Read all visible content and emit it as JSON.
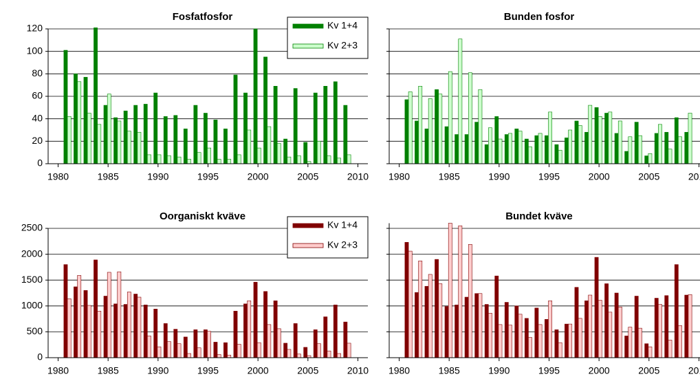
{
  "chart_data": [
    {
      "type": "bar",
      "title": "Fosfatfosfor",
      "x": [
        1981,
        1982,
        1983,
        1984,
        1985,
        1986,
        1987,
        1988,
        1989,
        1990,
        1991,
        1992,
        1993,
        1994,
        1995,
        1996,
        1997,
        1998,
        1999,
        2000,
        2001,
        2002,
        2003,
        2004,
        2005,
        2006,
        2007,
        2008,
        2009
      ],
      "series": [
        {
          "name": "Kv 1+4",
          "color": "#008000",
          "values": [
            101,
            80,
            77,
            121,
            52,
            41,
            47,
            52,
            53,
            63,
            42,
            43,
            31,
            52,
            45,
            39,
            31,
            79,
            63,
            120,
            95,
            69,
            22,
            67,
            19,
            63,
            69,
            73,
            52
          ]
        },
        {
          "name": "Kv 2+3",
          "color": "#ccffcc",
          "values": [
            42,
            73,
            45,
            35,
            62,
            38,
            29,
            28,
            8,
            8,
            7,
            6,
            4,
            10,
            14,
            4,
            4,
            8,
            30,
            14,
            33,
            18,
            6,
            7,
            2,
            20,
            7,
            5,
            8
          ]
        }
      ],
      "xlim": [
        1979,
        2011
      ],
      "xticks": [
        1980,
        1985,
        1990,
        1995,
        2000,
        2005,
        2010
      ],
      "ylim": [
        0,
        120
      ],
      "yticks": [
        0,
        20,
        40,
        60,
        80,
        100,
        120
      ],
      "show_ytick_labels": true,
      "grid": true,
      "legend": "upper right"
    },
    {
      "type": "bar",
      "title": "Bunden fosfor",
      "x": [
        1981,
        1982,
        1983,
        1984,
        1985,
        1986,
        1987,
        1988,
        1989,
        1990,
        1991,
        1992,
        1993,
        1994,
        1995,
        1996,
        1997,
        1998,
        1999,
        2000,
        2001,
        2002,
        2003,
        2004,
        2005,
        2006,
        2007,
        2008,
        2009
      ],
      "series": [
        {
          "name": "Kv 1+4",
          "color": "#008000",
          "values": [
            57,
            38,
            31,
            66,
            33,
            26,
            26,
            37,
            17,
            42,
            26,
            31,
            22,
            25,
            25,
            17,
            23,
            38,
            28,
            50,
            45,
            27,
            11,
            37,
            7,
            27,
            28,
            41,
            28
          ]
        },
        {
          "name": "Kv 2+3",
          "color": "#ccffcc",
          "values": [
            64,
            69,
            58,
            62,
            82,
            111,
            81,
            66,
            32,
            22,
            27,
            29,
            15,
            27,
            46,
            12,
            30,
            34,
            52,
            42,
            46,
            38,
            24,
            25,
            9,
            35,
            13,
            24,
            45
          ]
        }
      ],
      "xlim": [
        1979,
        2011
      ],
      "xticks": [
        1980,
        1985,
        1990,
        1995,
        2000,
        2005,
        2010
      ],
      "ylim": [
        0,
        120
      ],
      "yticks": [
        0,
        20,
        40,
        60,
        80,
        100,
        120
      ],
      "show_ytick_labels": false,
      "grid": true,
      "legend": false
    },
    {
      "type": "bar",
      "title": "Oorganiskt kväve",
      "x": [
        1981,
        1982,
        1983,
        1984,
        1985,
        1986,
        1987,
        1988,
        1989,
        1990,
        1991,
        1992,
        1993,
        1994,
        1995,
        1996,
        1997,
        1998,
        1999,
        2000,
        2001,
        2002,
        2003,
        2004,
        2005,
        2006,
        2007,
        2008,
        2009
      ],
      "series": [
        {
          "name": "Kv 1+4",
          "color": "#800000",
          "values": [
            1800,
            1370,
            1300,
            1890,
            1190,
            1040,
            1030,
            1230,
            1020,
            940,
            660,
            550,
            400,
            540,
            540,
            300,
            290,
            900,
            1040,
            1460,
            1280,
            1100,
            280,
            660,
            200,
            540,
            790,
            1020,
            690
          ]
        },
        {
          "name": "Kv 2+3",
          "color": "#ffcccc",
          "values": [
            1140,
            1590,
            1010,
            900,
            1650,
            1660,
            1270,
            1170,
            420,
            210,
            310,
            270,
            80,
            190,
            510,
            60,
            50,
            260,
            1100,
            290,
            640,
            560,
            160,
            70,
            40,
            270,
            130,
            80,
            280
          ]
        }
      ],
      "xlim": [
        1979,
        2011
      ],
      "xticks": [
        1980,
        1985,
        1990,
        1995,
        2000,
        2005,
        2010
      ],
      "ylim": [
        0,
        2500
      ],
      "yticks": [
        0,
        500,
        1000,
        1500,
        2000,
        2500
      ],
      "show_ytick_labels": true,
      "grid": true,
      "legend": "upper right"
    },
    {
      "type": "bar",
      "title": "Bundet kväve",
      "x": [
        1981,
        1982,
        1983,
        1984,
        1985,
        1986,
        1987,
        1988,
        1989,
        1990,
        1991,
        1992,
        1993,
        1994,
        1995,
        1996,
        1997,
        1998,
        1999,
        2000,
        2001,
        2002,
        2003,
        2004,
        2005,
        2006,
        2007,
        2008,
        2009
      ],
      "series": [
        {
          "name": "Kv 1+4",
          "color": "#800000",
          "values": [
            2230,
            1260,
            1380,
            1900,
            990,
            1020,
            1170,
            1240,
            1030,
            1580,
            1070,
            1000,
            760,
            960,
            740,
            540,
            650,
            1360,
            1100,
            1940,
            1430,
            1250,
            420,
            1190,
            270,
            1150,
            1200,
            1800,
            1210
          ]
        },
        {
          "name": "Kv 2+3",
          "color": "#ffcccc",
          "values": [
            2060,
            1870,
            1610,
            1430,
            2600,
            2550,
            2190,
            1240,
            860,
            640,
            630,
            840,
            390,
            640,
            1100,
            290,
            650,
            760,
            1210,
            1110,
            880,
            980,
            590,
            570,
            210,
            1030,
            340,
            620,
            1220
          ]
        }
      ],
      "xlim": [
        1979,
        2011
      ],
      "xticks": [
        1980,
        1985,
        1990,
        1995,
        2000,
        2005,
        2010
      ],
      "ylim": [
        0,
        2600
      ],
      "yticks": [
        0,
        500,
        1000,
        1500,
        2000,
        2500
      ],
      "show_ytick_labels": false,
      "grid": true,
      "legend": false
    }
  ]
}
